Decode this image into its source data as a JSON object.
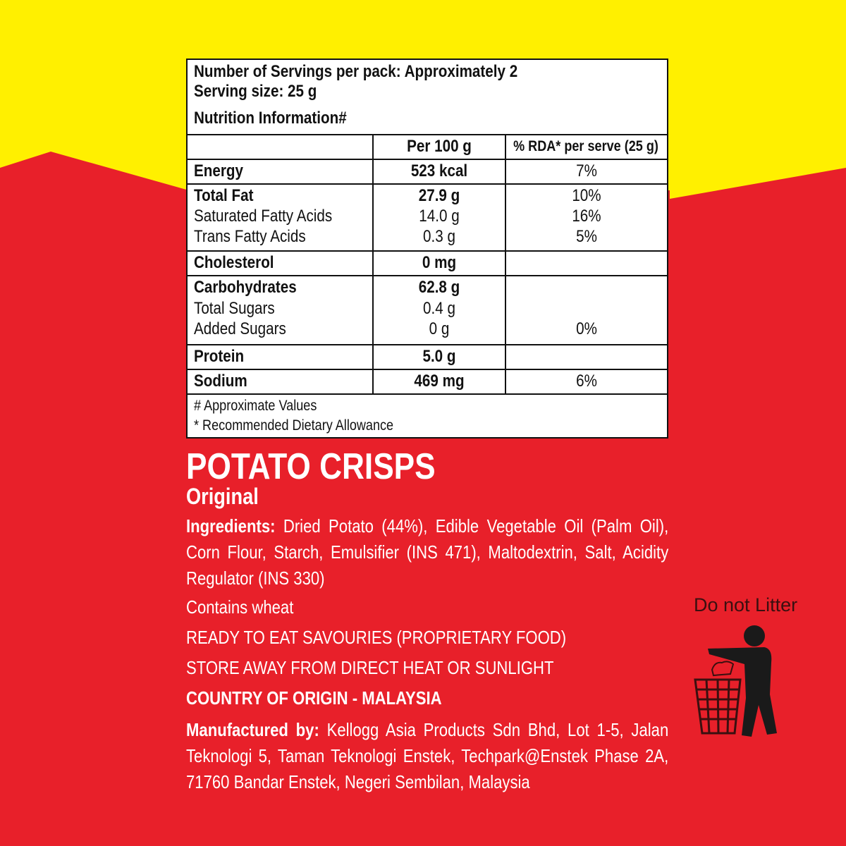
{
  "colors": {
    "yellow": "#fff000",
    "red": "#e8202a"
  },
  "nutrition": {
    "servings": "Number of Servings per pack: Approximately 2",
    "serving_size": "Serving size: 25 g",
    "title": "Nutrition Information#",
    "col_per100": "Per 100 g",
    "col_rda": "% RDA* per serve (25 g)",
    "rows": [
      {
        "name": "Energy",
        "per100": "523 kcal",
        "rda": "7%"
      },
      {
        "name": "Total Fat",
        "per100": "27.9 g",
        "rda": "10%"
      },
      {
        "name": "Saturated Fatty Acids",
        "per100": "14.0 g",
        "rda": "16%"
      },
      {
        "name": "Trans Fatty Acids",
        "per100": "0.3 g",
        "rda": "5%"
      },
      {
        "name": "Cholesterol",
        "per100": "0 mg",
        "rda": ""
      },
      {
        "name": "Carbohydrates",
        "per100": "62.8 g",
        "rda": ""
      },
      {
        "name": "Total Sugars",
        "per100": "0.4 g",
        "rda": ""
      },
      {
        "name": "Added Sugars",
        "per100": "0 g",
        "rda": "0%"
      },
      {
        "name": "Protein",
        "per100": "5.0 g",
        "rda": ""
      },
      {
        "name": "Sodium",
        "per100": "469 mg",
        "rda": "6%"
      }
    ],
    "foot1": "# Approximate Values",
    "foot2": "* Recommended Dietary Allowance"
  },
  "product": {
    "name": "POTATO CRISPS",
    "variant": "Original",
    "ingredients_label": "Ingredients:",
    "ingredients": "Dried Potato (44%), Edible Vegetable Oil (Palm Oil), Corn Flour, Starch, Emulsifier (INS 471), Maltodextrin, Salt, Acidity Regulator (INS 330)",
    "allergen": "Contains wheat",
    "category": "READY TO EAT SAVOURIES (PROPRIETARY FOOD)",
    "storage": "STORE AWAY FROM DIRECT HEAT OR SUNLIGHT",
    "origin": "COUNTRY OF ORIGIN - MALAYSIA",
    "manufacturer_label": "Manufactured by:",
    "manufacturer": "Kellogg Asia Products Sdn Bhd, Lot 1-5, Jalan Teknologi 5, Taman Teknologi Enstek, Techpark@Enstek Phase 2A, 71760 Bandar Enstek, Negeri Sembilan, Malaysia"
  },
  "litter": {
    "label": "Do not Litter",
    "icon": "do-not-litter-icon"
  }
}
